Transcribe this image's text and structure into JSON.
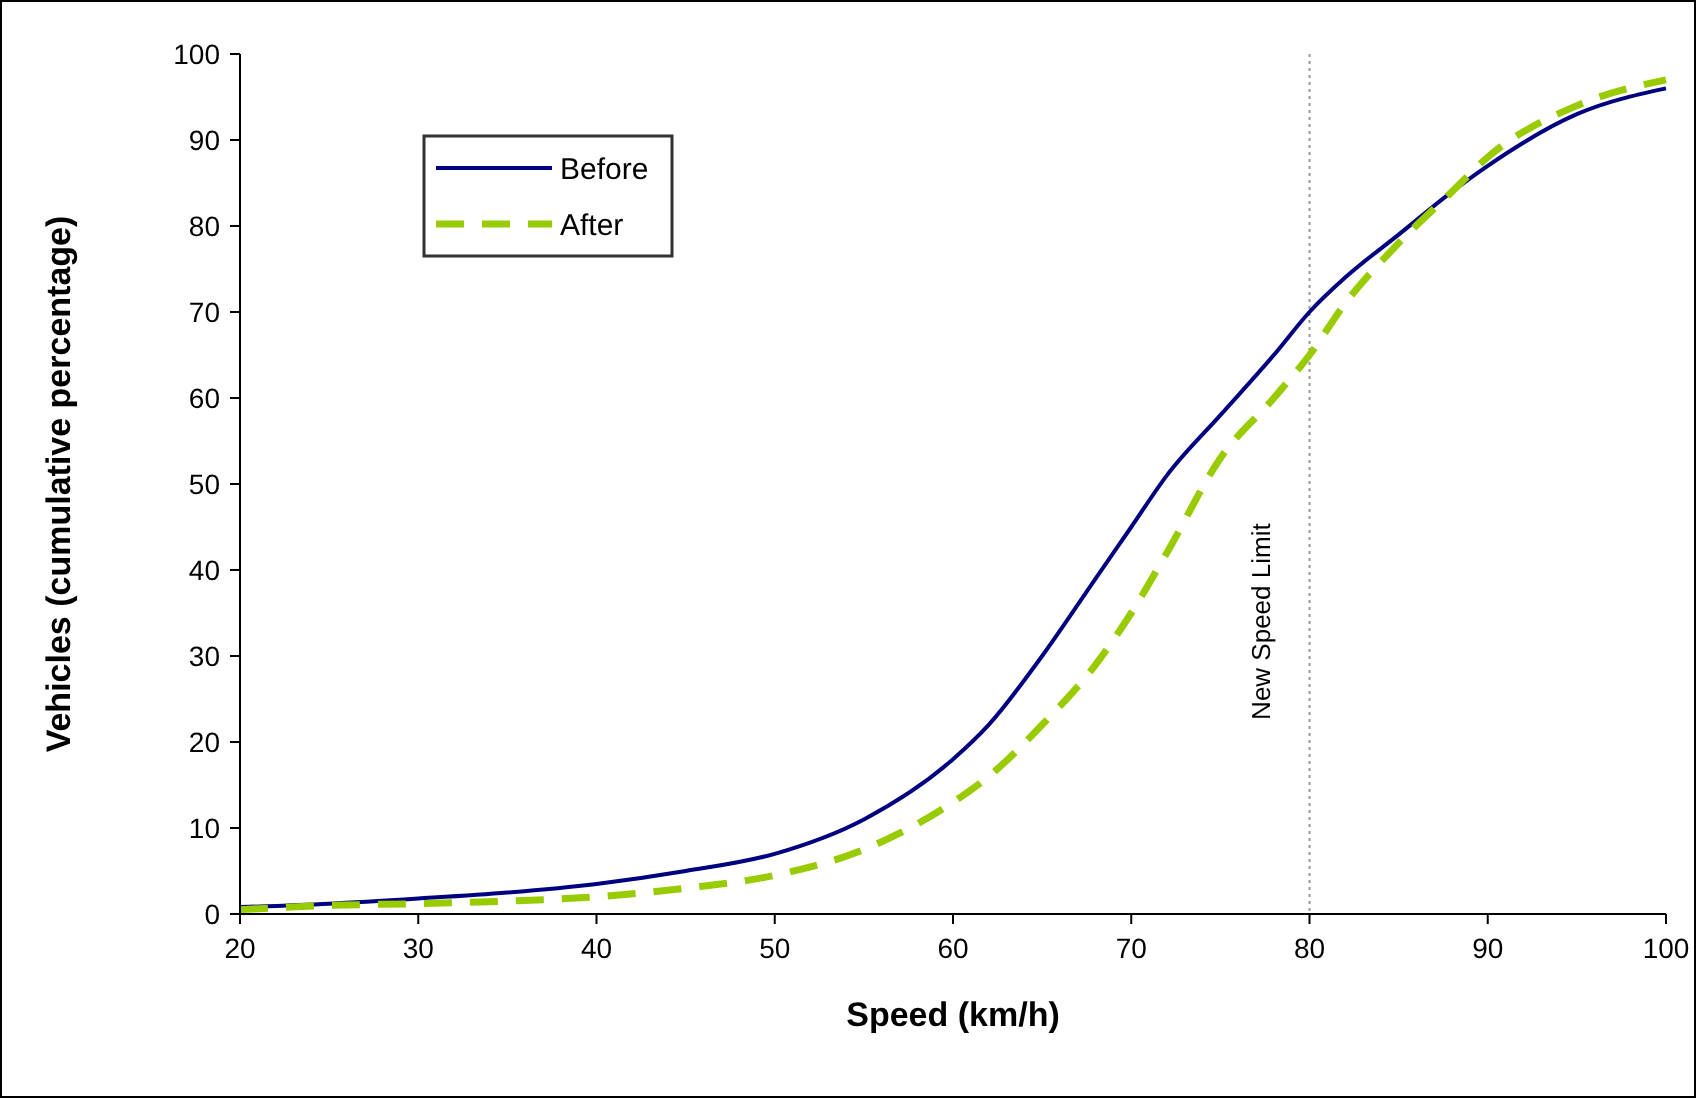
{
  "chart_data": {
    "type": "line",
    "xlabel": "Speed (km/h)",
    "ylabel": "Vehicles (cumulative percentage)",
    "xlim": [
      20,
      100
    ],
    "xticks": [
      20,
      30,
      40,
      50,
      60,
      70,
      80,
      90,
      100
    ],
    "ylim": [
      0,
      100
    ],
    "yticks": [
      0,
      10,
      20,
      30,
      40,
      50,
      60,
      70,
      80,
      90,
      100
    ],
    "grid": false,
    "legend": "top left",
    "marker": "none",
    "ref_lines": [
      {
        "axis": "x",
        "value": 80,
        "label": "New Speed Limit",
        "color": "#999999",
        "line_style": "dotted"
      }
    ],
    "series": [
      {
        "name": "Before",
        "color": "#000080",
        "line_style": "solid",
        "x": [
          20,
          25,
          30,
          35,
          40,
          45,
          50,
          55,
          60,
          62,
          65,
          68,
          70,
          72,
          75,
          78,
          80,
          82,
          85,
          88,
          90,
          95,
          100
        ],
        "values": [
          0.8,
          1.2,
          1.8,
          2.5,
          3.5,
          5,
          7,
          11,
          18,
          22,
          30,
          39,
          45,
          51,
          58,
          65,
          70,
          74,
          79,
          84,
          87,
          93,
          96
        ]
      },
      {
        "name": "After",
        "color": "#99cc00",
        "line_style": "dashed",
        "x": [
          20,
          25,
          30,
          35,
          40,
          45,
          50,
          55,
          60,
          62,
          65,
          68,
          70,
          72,
          75,
          78,
          80,
          82,
          85,
          88,
          90,
          95,
          100
        ],
        "values": [
          0.5,
          1,
          1.2,
          1.5,
          2,
          3,
          4.5,
          7.5,
          13,
          16,
          22,
          29,
          35,
          42,
          53,
          60,
          65,
          71,
          78,
          84,
          88,
          94,
          97
        ]
      }
    ]
  }
}
